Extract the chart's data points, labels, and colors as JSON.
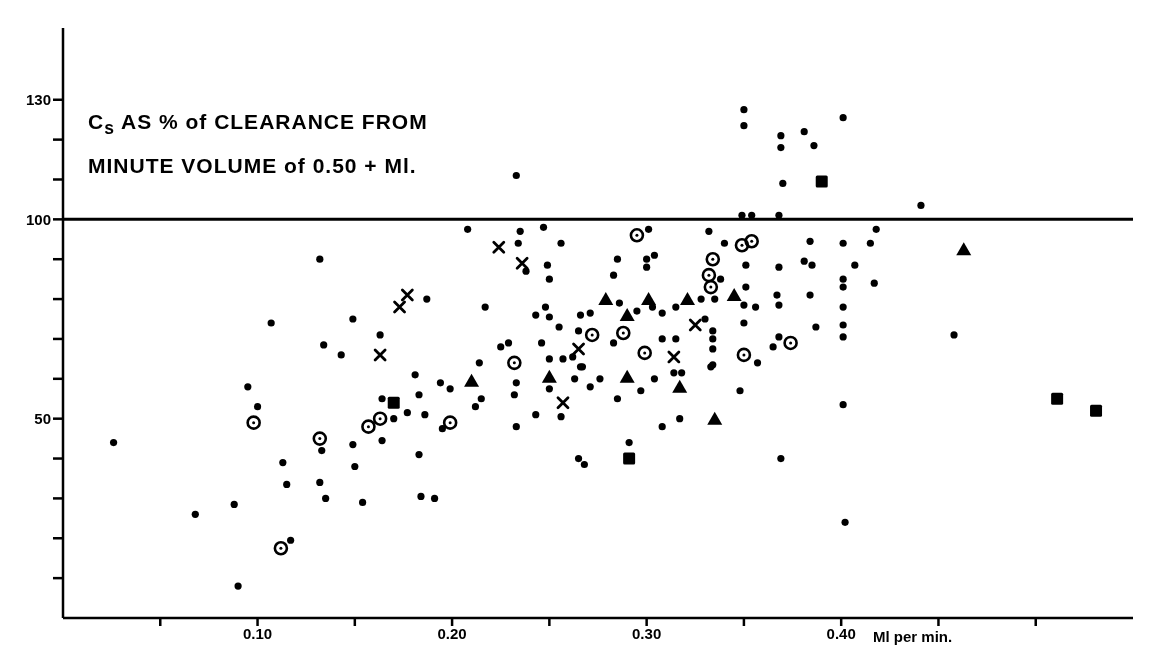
{
  "chart_data": {
    "type": "scatter",
    "title": "C$_{s}$ AS % of CLEARANCE FROM MINUTE VOLUME of 0.50 + Ml.",
    "xlabel": "Ml per min.",
    "xlim": [
      0,
      0.55
    ],
    "xticks": [
      {
        "value": 0.05,
        "label": null
      },
      {
        "value": 0.1,
        "label": "0.10"
      },
      {
        "value": 0.15,
        "label": null
      },
      {
        "value": 0.2,
        "label": "0.20"
      },
      {
        "value": 0.25,
        "label": null
      },
      {
        "value": 0.3,
        "label": "0.30"
      },
      {
        "value": 0.35,
        "label": null
      },
      {
        "value": 0.4,
        "label": "0.40"
      },
      {
        "value": 0.45,
        "label": null
      },
      {
        "value": 0.5,
        "label": null
      }
    ],
    "ylim": [
      0,
      148
    ],
    "yticks": [
      {
        "value": 10,
        "label": null
      },
      {
        "value": 20,
        "label": null
      },
      {
        "value": 30,
        "label": null
      },
      {
        "value": 40,
        "label": null
      },
      50,
      {
        "value": 60,
        "label": null
      },
      {
        "value": 70,
        "label": null
      },
      {
        "value": 80,
        "label": null
      },
      {
        "value": 90,
        "label": null
      },
      100,
      {
        "value": 110,
        "label": null
      },
      {
        "value": 120,
        "label": null
      },
      130
    ],
    "ref_lines": [
      {
        "axis": "y",
        "value": 100,
        "color": "#000000"
      }
    ],
    "series": [
      {
        "marker": "circle",
        "color": "#000000",
        "x": [
          0.026,
          0.068,
          0.088,
          0.09,
          0.095,
          0.1,
          0.107,
          0.113,
          0.115,
          0.117,
          0.132,
          0.133,
          0.134,
          0.132,
          0.135,
          0.143,
          0.149,
          0.15,
          0.149,
          0.154,
          0.163,
          0.164,
          0.164,
          0.17,
          0.177,
          0.181,
          0.183,
          0.183,
          0.184,
          0.186,
          0.187,
          0.191,
          0.194,
          0.195,
          0.199,
          0.208,
          0.212,
          0.214,
          0.215,
          0.217,
          0.225,
          0.229,
          0.232,
          0.233,
          0.233,
          0.233,
          0.234,
          0.235,
          0.238,
          0.243,
          0.243,
          0.246,
          0.247,
          0.248,
          0.249,
          0.25,
          0.25,
          0.25,
          0.25,
          0.255,
          0.256,
          0.256,
          0.257,
          0.262,
          0.263,
          0.265,
          0.265,
          0.266,
          0.266,
          0.267,
          0.268,
          0.271,
          0.271,
          0.276,
          0.283,
          0.283,
          0.285,
          0.285,
          0.286,
          0.291,
          0.295,
          0.297,
          0.3,
          0.3,
          0.301,
          0.303,
          0.304,
          0.304,
          0.308,
          0.308,
          0.308,
          0.314,
          0.315,
          0.315,
          0.317,
          0.318,
          0.328,
          0.33,
          0.332,
          0.333,
          0.334,
          0.334,
          0.334,
          0.334,
          0.335,
          0.338,
          0.34,
          0.348,
          0.349,
          0.35,
          0.35,
          0.35,
          0.35,
          0.351,
          0.351,
          0.354,
          0.356,
          0.357,
          0.365,
          0.367,
          0.368,
          0.368,
          0.368,
          0.368,
          0.369,
          0.369,
          0.369,
          0.37,
          0.381,
          0.381,
          0.384,
          0.384,
          0.385,
          0.386,
          0.387,
          0.401,
          0.401,
          0.401,
          0.401,
          0.401,
          0.401,
          0.401,
          0.401,
          0.402,
          0.407,
          0.415,
          0.417,
          0.418,
          0.441,
          0.458
        ],
        "values": [
          44,
          26,
          28.5,
          8,
          58,
          53,
          74,
          39,
          33.5,
          19.5,
          90,
          42,
          68.5,
          34,
          30,
          66,
          75,
          38,
          43.5,
          29,
          71,
          55,
          44.5,
          50,
          51.5,
          61,
          56,
          41,
          30.5,
          51,
          80,
          30,
          59,
          47.5,
          57.5,
          97.5,
          53,
          64,
          55,
          78,
          68,
          69,
          56,
          111,
          59,
          48,
          94,
          97,
          87,
          76,
          51,
          69,
          98,
          78,
          88.5,
          85,
          75.5,
          65,
          57.5,
          73,
          94,
          50.5,
          65,
          65.5,
          60,
          72,
          40,
          76,
          63,
          63,
          38.5,
          76.5,
          58,
          60,
          69,
          86,
          90,
          55,
          79,
          44,
          77,
          57,
          90,
          88,
          97.5,
          78,
          91,
          60,
          76.5,
          70,
          48,
          61.5,
          78,
          70,
          50,
          61.5,
          80,
          75,
          97,
          63,
          72,
          70,
          67.5,
          63.5,
          80,
          85,
          94,
          57,
          101,
          127.5,
          123.5,
          78.5,
          74,
          88.5,
          83,
          101,
          78,
          64,
          68,
          81,
          101,
          88,
          78.5,
          70.5,
          121,
          118,
          40,
          109,
          122,
          89.5,
          94.5,
          81,
          88.5,
          118.5,
          73,
          125.5,
          94,
          85,
          83,
          78,
          73.5,
          70.5,
          53.5,
          24,
          88.5,
          94,
          84,
          97.5,
          103.5,
          71
        ]
      },
      {
        "color": "#000000",
        "x": [
          0.098,
          0.112,
          0.132,
          0.157,
          0.163,
          0.199,
          0.232,
          0.272,
          0.288,
          0.295,
          0.299,
          0.332,
          0.333,
          0.334,
          0.349,
          0.35,
          0.354,
          0.374
        ],
        "values": [
          49,
          17.5,
          45,
          48,
          50,
          49,
          64,
          71,
          71.5,
          96,
          66.5,
          86,
          83,
          90,
          93.5,
          66,
          94.5,
          69
        ]
      },
      {
        "marker": "cross",
        "color": "#000000",
        "x": [
          0.163,
          0.173,
          0.177,
          0.224,
          0.236,
          0.257,
          0.265,
          0.314,
          0.325
        ],
        "values": [
          66,
          78,
          81,
          93,
          89,
          54,
          67.5,
          65.5,
          73.5
        ]
      },
      {
        "marker": "triangle",
        "color": "#000000",
        "x": [
          0.21,
          0.25,
          0.279,
          0.29,
          0.29,
          0.301,
          0.317,
          0.321,
          0.335,
          0.345,
          0.463
        ],
        "values": [
          59.5,
          60.5,
          80,
          76,
          60.5,
          80,
          58,
          80,
          50,
          81,
          92.5
        ]
      },
      {
        "marker": "square",
        "color": "#000000",
        "x": [
          0.17,
          0.291,
          0.39,
          0.511,
          0.531
        ],
        "values": [
          54,
          40,
          109.5,
          55,
          52
        ]
      }
    ]
  }
}
